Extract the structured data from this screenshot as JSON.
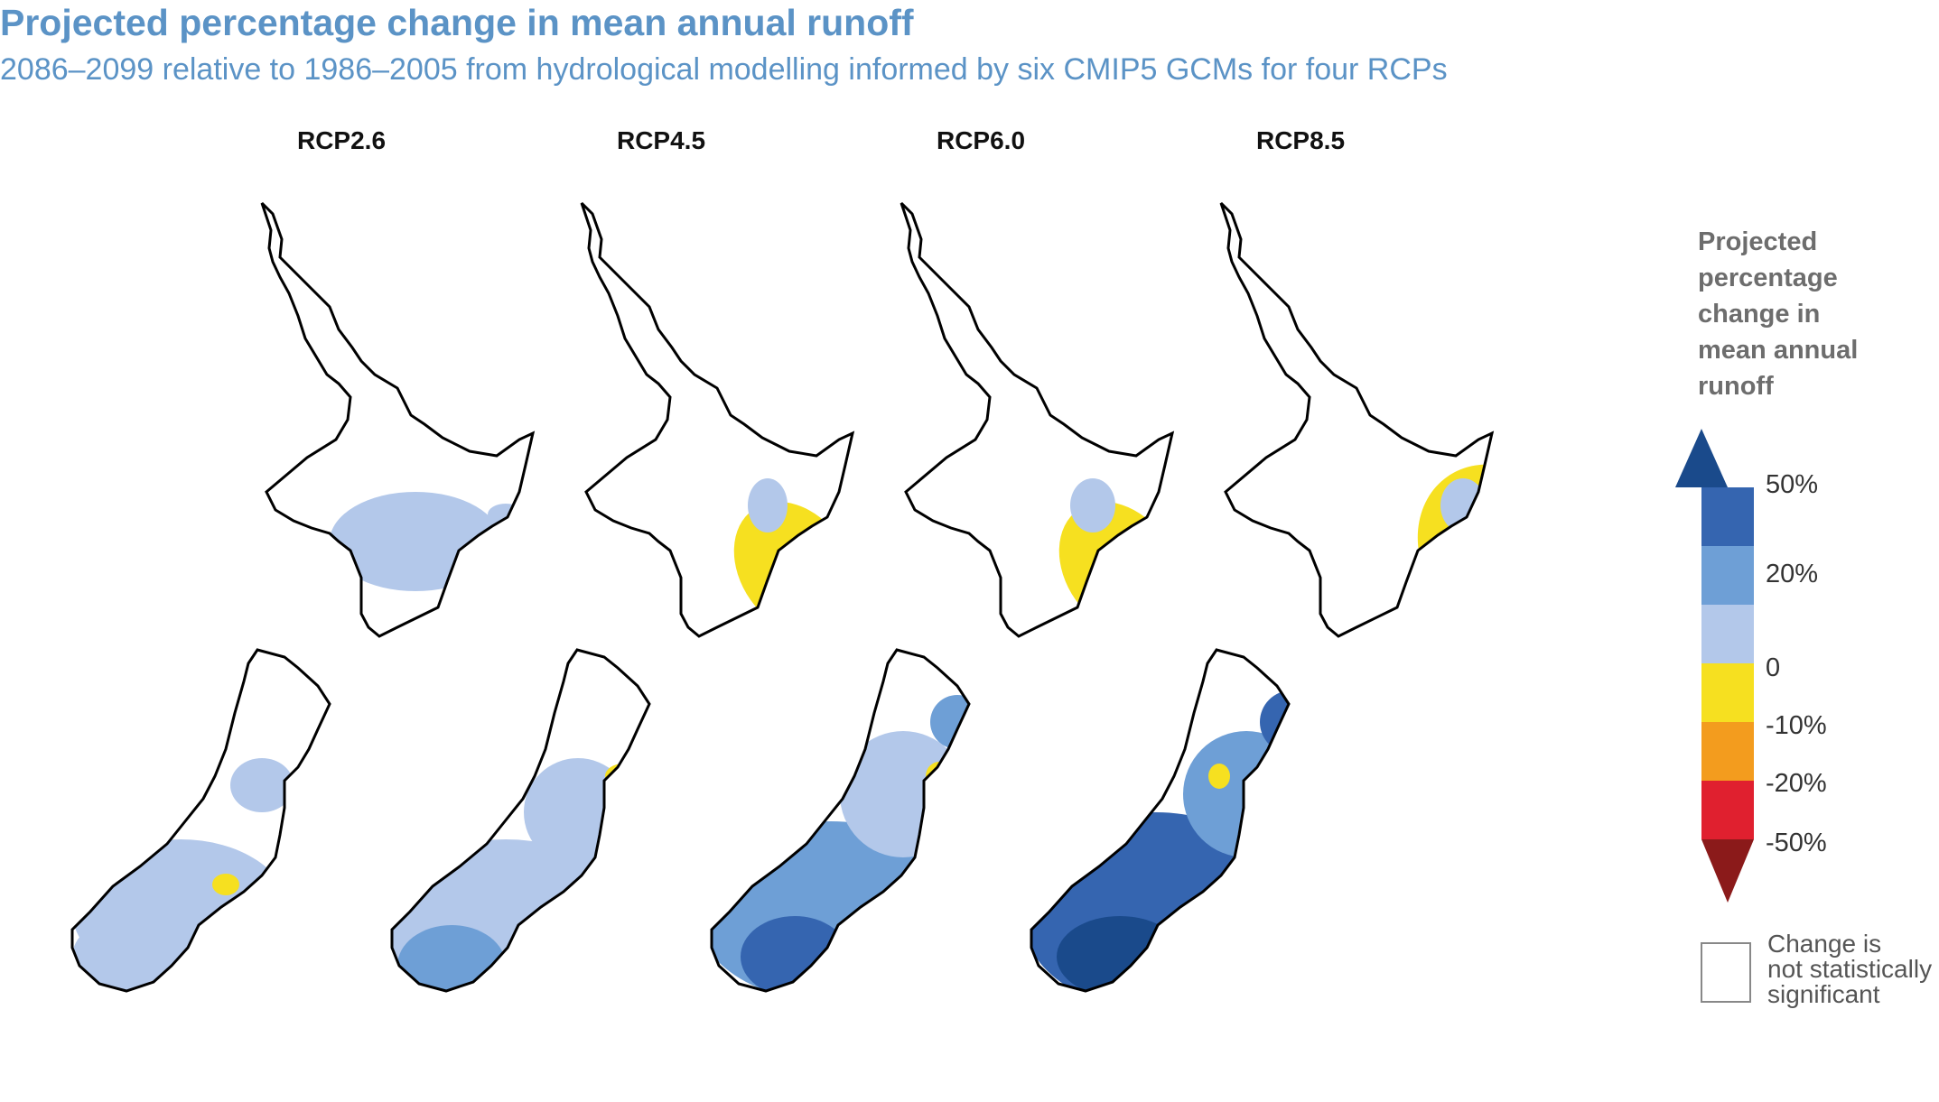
{
  "header": {
    "title": "Projected percentage change in mean annual runoff",
    "subtitle": "2086–2099 relative to 1986–2005 from hydrological modelling informed by six CMIP5 GCMs for four RCPs"
  },
  "panels": [
    {
      "label": "RCP2.6"
    },
    {
      "label": "RCP4.5"
    },
    {
      "label": "RCP6.0"
    },
    {
      "label": "RCP8.5"
    }
  ],
  "legend": {
    "title_lines": [
      "Projected",
      "percentage",
      "change in",
      "mean annual",
      "runoff"
    ],
    "classes": [
      {
        "color": "#1a4a8b"
      },
      {
        "color": "#3565b0"
      },
      {
        "color": "#6e9fd6"
      },
      {
        "color": "#b3c8ea"
      },
      {
        "color": "#f6e020"
      },
      {
        "color": "#f39c1e"
      },
      {
        "color": "#e0202f"
      },
      {
        "color": "#8b1a1a"
      }
    ],
    "ticks": [
      "50%",
      "20%",
      "0",
      "-10%",
      "-20%",
      "-50%"
    ],
    "not_significant_lines": [
      "Change is",
      "not statistically",
      "significant"
    ]
  }
}
